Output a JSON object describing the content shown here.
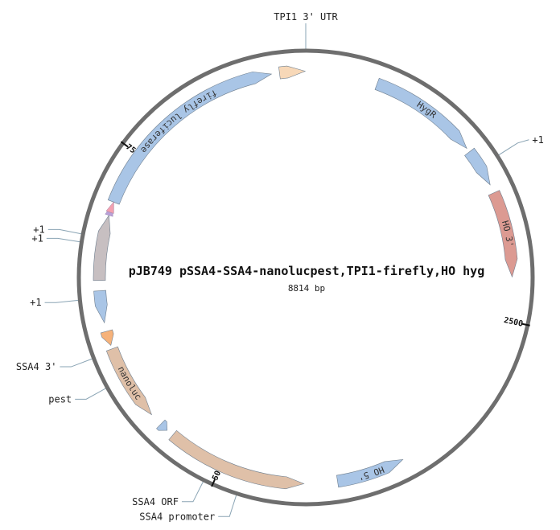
{
  "plasmid": {
    "name": "pJB749 pSSA4-SSA4-nanolucpest,TPI1-firefly,HO hyg",
    "length_label": "8814 bp",
    "total_bp": 8814
  },
  "colors": {
    "backbone": "#6e6e6e",
    "blue": "#a9c5e6",
    "peach": "#f7d8b8",
    "salmon": "#dc9a92",
    "tan": "#dfc0a8",
    "gray": "#c7bfc1",
    "orange": "#f6b27a",
    "lavender": "#b9a0d8",
    "pink": "#f3a0b0",
    "leader": "#8aa4b4"
  },
  "features": [
    {
      "id": "hygr",
      "label": "HygR",
      "start": 495,
      "end": 1255,
      "strand": 1,
      "color": "blue"
    },
    {
      "id": "hygr-2",
      "label": "",
      "start": 1285,
      "end": 1550,
      "strand": 1,
      "color": "blue"
    },
    {
      "id": "ho-3",
      "label": "HO 3'",
      "start": 1610,
      "end": 2200,
      "strand": 1,
      "color": "salmon"
    },
    {
      "id": "ho-5",
      "label": "HO 5'",
      "start": 3720,
      "end": 4190,
      "strand": -1,
      "color": "blue"
    },
    {
      "id": "ssa4-promoter",
      "label": "",
      "start": 4420,
      "end": 5390,
      "strand": -1,
      "color": "tan"
    },
    {
      "id": "small-arrow",
      "label": "",
      "start": 5440,
      "end": 5500,
      "strand": -1,
      "color": "blue"
    },
    {
      "id": "nanoluc",
      "label": "nanoluc",
      "start": 5590,
      "end": 6115,
      "strand": -1,
      "color": "tan"
    },
    {
      "id": "pest",
      "label": "",
      "start": 6140,
      "end": 6240,
      "strand": -1,
      "color": "orange"
    },
    {
      "id": "ssa4-3",
      "label": "",
      "start": 6300,
      "end": 6520,
      "strand": -1,
      "color": "blue"
    },
    {
      "id": "gray-block",
      "label": "",
      "start": 6590,
      "end": 7040,
      "strand": 1,
      "color": "gray"
    },
    {
      "id": "firefly",
      "label": "firefly luciferase",
      "start": 7135,
      "end": 8580,
      "strand": 1,
      "color": "blue"
    },
    {
      "id": "tpi1-utr",
      "label": "",
      "start": 8635,
      "end": 8810,
      "strand": 1,
      "color": "peach"
    }
  ],
  "marks": [
    {
      "id": "mark-lavender",
      "pos": 7078,
      "color": "lavender"
    },
    {
      "id": "mark-pink",
      "pos": 7100,
      "color": "pink"
    }
  ],
  "ticks": [
    {
      "label": "2500",
      "pos": 2500
    },
    {
      "label": "5000",
      "pos": 5000
    },
    {
      "label": "7500",
      "pos": 7500
    }
  ],
  "outer_labels": [
    {
      "id": "tpi1-utr-label",
      "text": "TPI1 3' UTR",
      "pos": 0
    },
    {
      "id": "plus1-right-label",
      "text": "+1",
      "pos": 1410
    },
    {
      "id": "ssa4-promoter-label",
      "text": "SSA4 promoter",
      "pos": 4840
    },
    {
      "id": "ssa4-orf-label",
      "text": "SSA4 ORF",
      "pos": 5060
    },
    {
      "id": "pest-label",
      "text": "pest",
      "pos": 5900
    },
    {
      "id": "ssa4-3-label",
      "text": "SSA4 3'",
      "pos": 6100
    },
    {
      "id": "plus1-mid-label",
      "text": "+1",
      "pos": 6470
    },
    {
      "id": "plus1-b-label",
      "text": "+1",
      "pos": 6830
    },
    {
      "id": "plus1-a-label",
      "text": "+1",
      "pos": 6880
    }
  ]
}
